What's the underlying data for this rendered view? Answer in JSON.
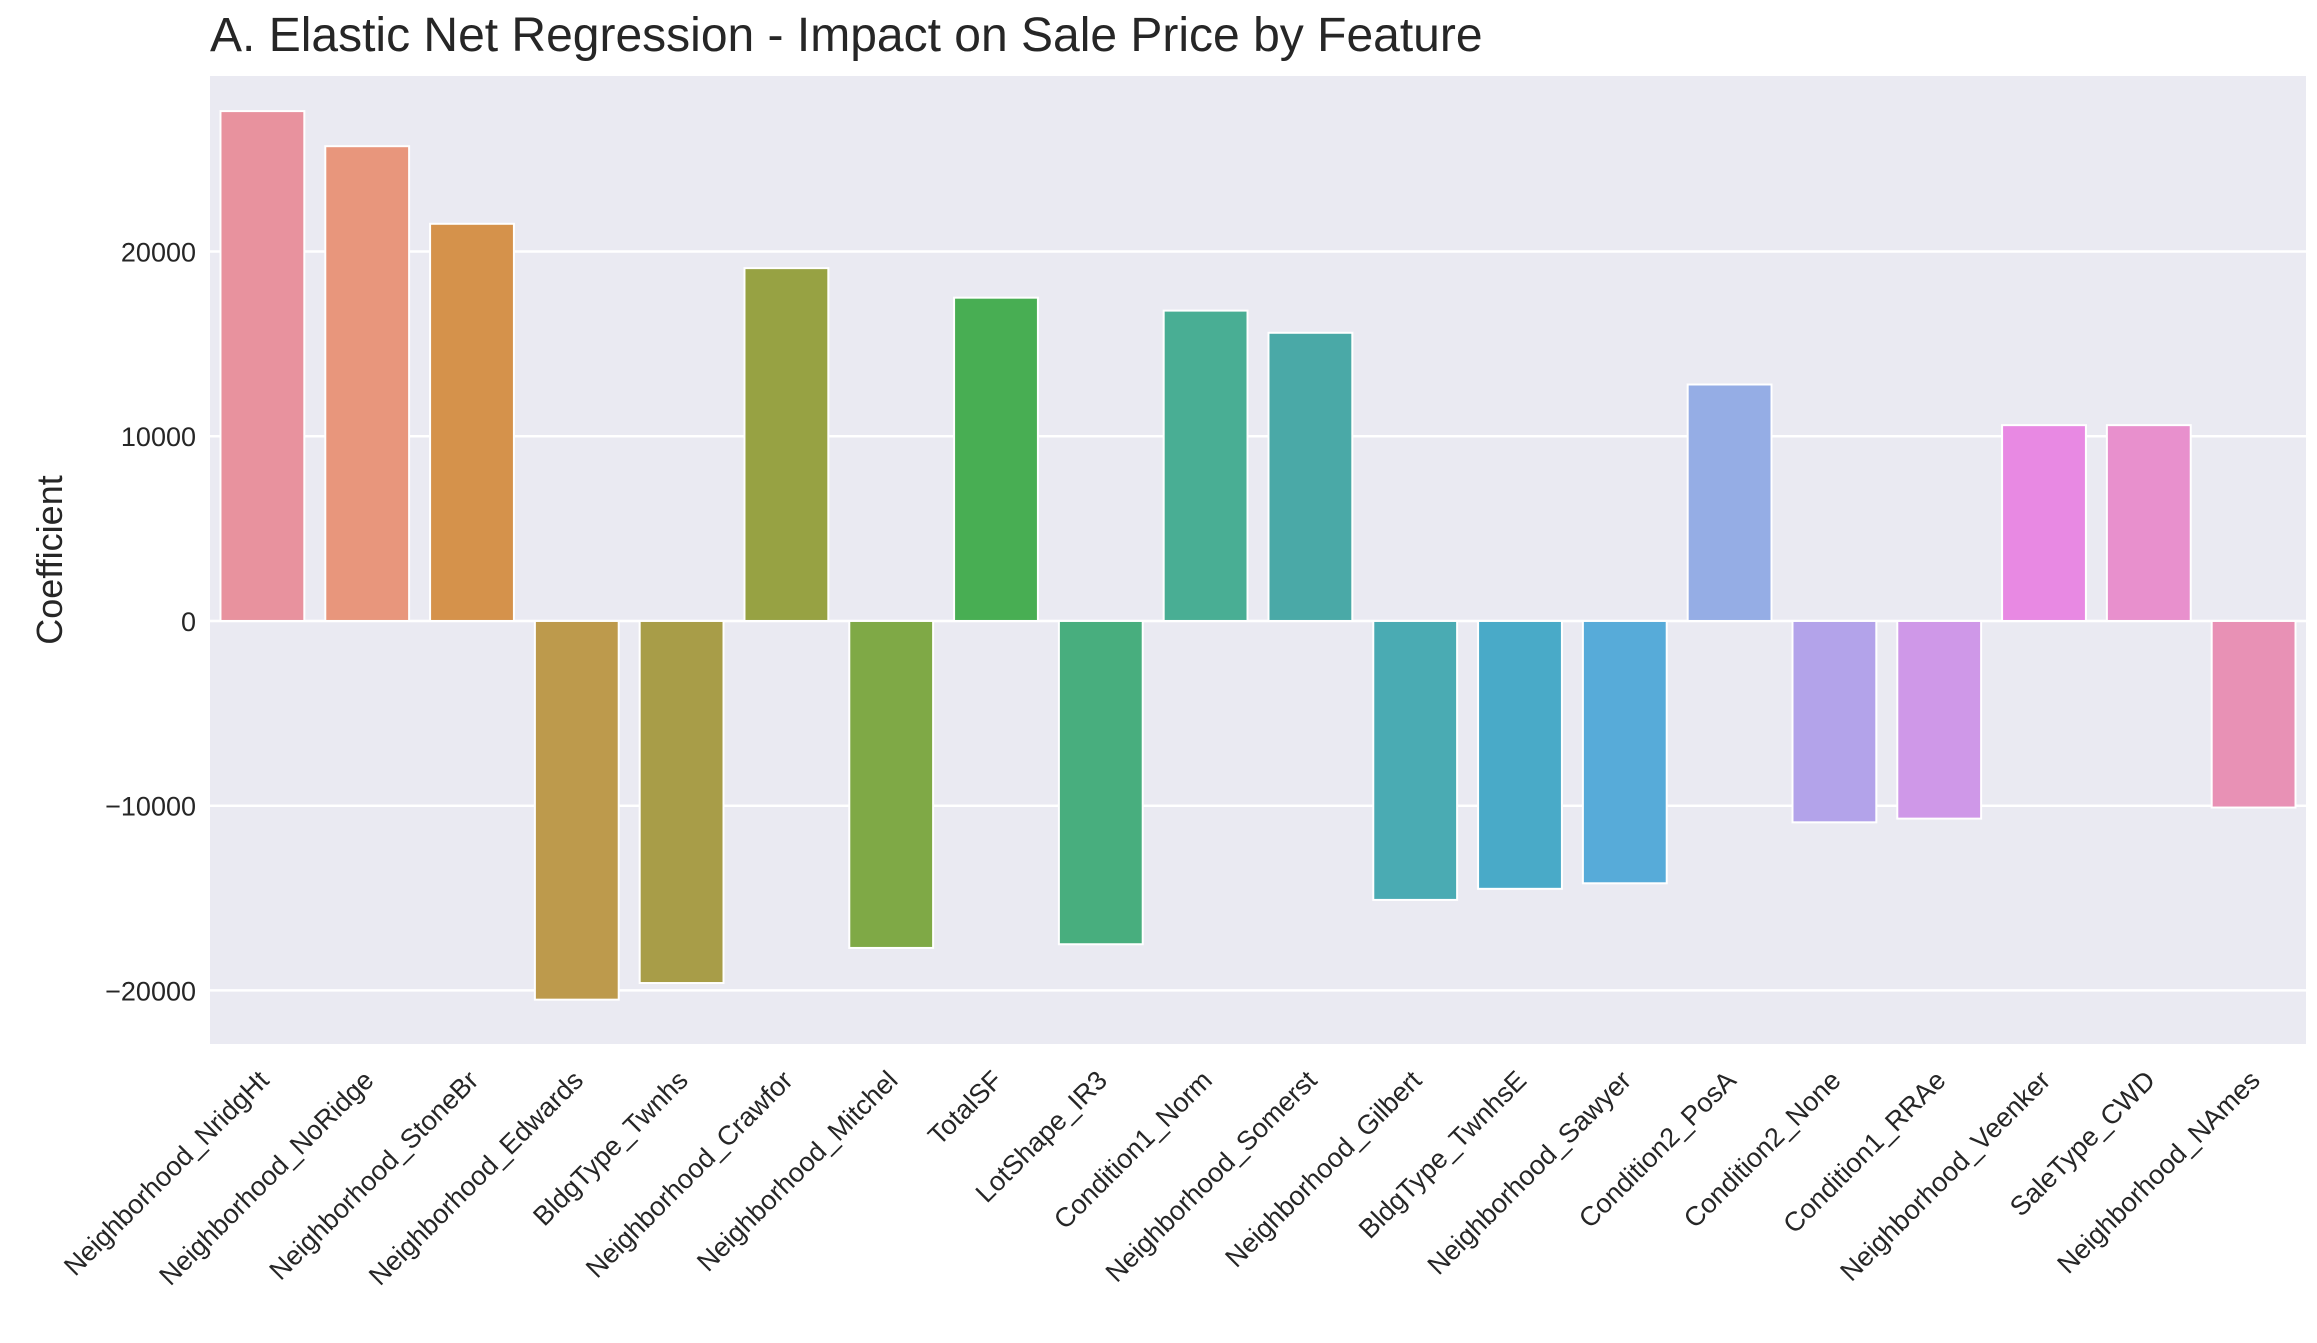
{
  "chart_data": {
    "type": "bar",
    "title": "A. Elastic Net Regression - Impact on Sale Price by Feature",
    "xlabel": "",
    "ylabel": "Coefficient",
    "ylim": [
      -22900,
      29500
    ],
    "yticks": [
      20000,
      10000,
      0,
      -10000,
      -20000
    ],
    "grid": true,
    "legend": "none",
    "categories": [
      "Neighborhood_NridgHt",
      "Neighborhood_NoRidge",
      "Neighborhood_StoneBr",
      "Neighborhood_Edwards",
      "BldgType_Twnhs",
      "Neighborhood_Crawfor",
      "Neighborhood_Mitchel",
      "TotalSF",
      "LotShape_IR3",
      "Condition1_Norm",
      "Neighborhood_Somerst",
      "Neighborhood_Gilbert",
      "BldgType_TwnhsE",
      "Neighborhood_Sawyer",
      "Condition2_PosA",
      "Condition2_None",
      "Condition1_RRAe",
      "Neighborhood_Veenker",
      "SaleType_CWD",
      "Neighborhood_NAmes"
    ],
    "values": [
      27600,
      25700,
      21500,
      -20500,
      -19600,
      19100,
      -17700,
      17500,
      -17500,
      16800,
      15600,
      -15100,
      -14500,
      -14200,
      12800,
      -10900,
      -10700,
      10600,
      10600,
      -10100
    ],
    "colors": [
      "#e8929e",
      "#e8967c",
      "#d5924b",
      "#bd9a4c",
      "#a89d48",
      "#97a243",
      "#7fa946",
      "#48ae53",
      "#48ae7e",
      "#49ae94",
      "#4aa9a7",
      "#4aabb3",
      "#49aac8",
      "#57abd9",
      "#95ade5",
      "#b3a3ea",
      "#cf98e8",
      "#e889e3",
      "#e890cd",
      "#e891b5"
    ],
    "background": "#eaeaf2",
    "gridline_color": "#ffffff"
  }
}
